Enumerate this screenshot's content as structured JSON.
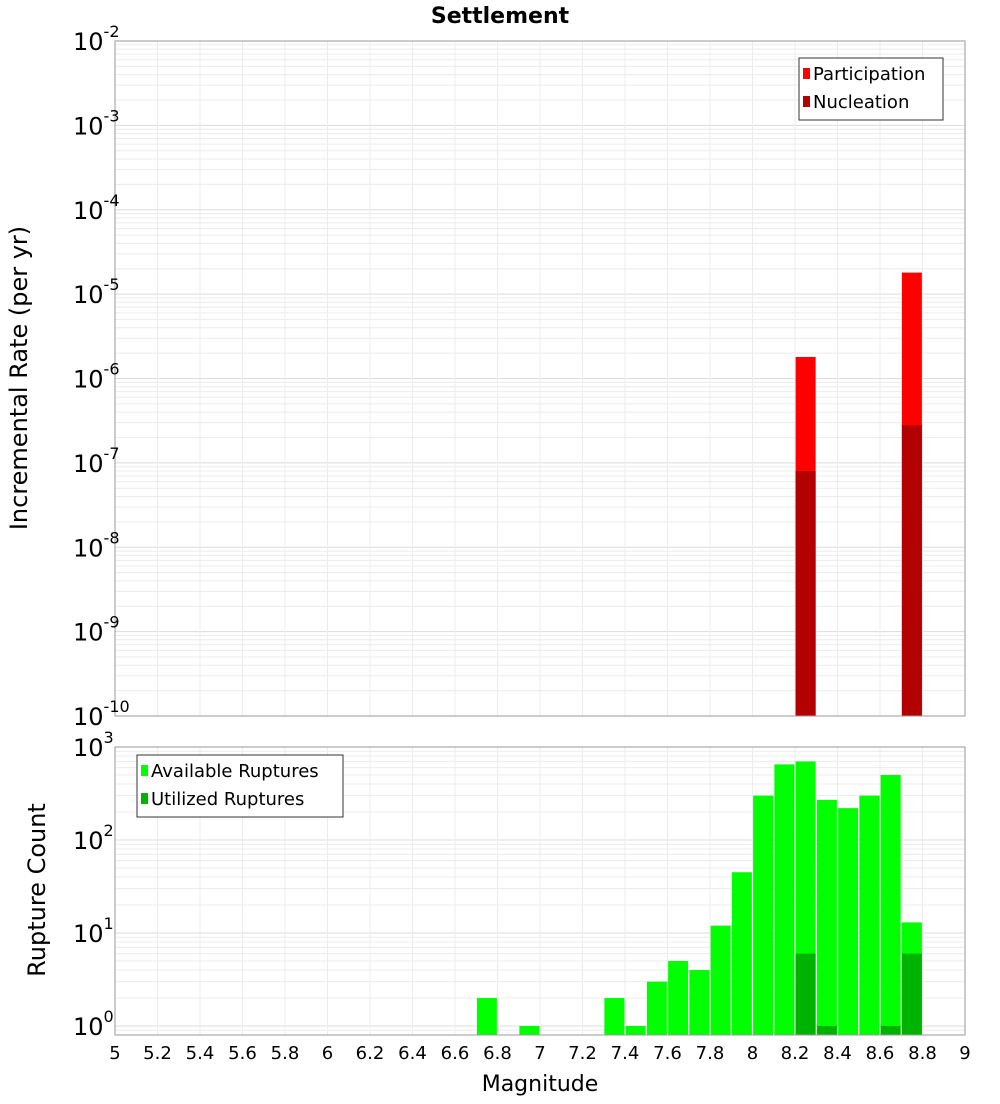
{
  "chart_data": [
    {
      "type": "bar",
      "title": "Settlement",
      "ylabel": "Incremental Rate (per yr)",
      "xlabel": "",
      "yscale": "log",
      "ylim": [
        1e-10,
        0.01
      ],
      "xlim": [
        5,
        9
      ],
      "y_ticks": [
        {
          "base": "10",
          "exp": "-2"
        },
        {
          "base": "10",
          "exp": "-3"
        },
        {
          "base": "10",
          "exp": "-4"
        },
        {
          "base": "10",
          "exp": "-5"
        },
        {
          "base": "10",
          "exp": "-6"
        },
        {
          "base": "10",
          "exp": "-7"
        },
        {
          "base": "10",
          "exp": "-8"
        },
        {
          "base": "10",
          "exp": "-9"
        },
        {
          "base": "10",
          "exp": "-10"
        }
      ],
      "legend_position": "top-right",
      "series": [
        {
          "name": "Participation",
          "color": "#ff0000",
          "x": [
            8.25,
            8.75
          ],
          "values": [
            1.8e-06,
            1.8e-05
          ]
        },
        {
          "name": "Nucleation",
          "color": "#b30000",
          "x": [
            8.25,
            8.75
          ],
          "values": [
            8e-08,
            2.8e-07
          ]
        }
      ]
    },
    {
      "type": "bar",
      "title": "",
      "ylabel": "Rupture Count",
      "xlabel": "Magnitude",
      "yscale": "log",
      "ylim": [
        0.8,
        1000
      ],
      "xlim": [
        5,
        9
      ],
      "x_ticks": [
        "5",
        "5.2",
        "5.4",
        "5.6",
        "5.8",
        "6",
        "6.2",
        "6.4",
        "6.6",
        "6.8",
        "7",
        "7.2",
        "7.4",
        "7.6",
        "7.8",
        "8",
        "8.2",
        "8.4",
        "8.6",
        "8.8",
        "9"
      ],
      "y_ticks": [
        {
          "base": "10",
          "exp": "3"
        },
        {
          "base": "10",
          "exp": "2"
        },
        {
          "base": "10",
          "exp": "1"
        },
        {
          "base": "10",
          "exp": "0"
        }
      ],
      "legend_position": "top-left",
      "series": [
        {
          "name": "Available Ruptures",
          "color": "#00ff00",
          "x": [
            6.75,
            6.95,
            7.35,
            7.45,
            7.55,
            7.65,
            7.75,
            7.85,
            7.95,
            8.05,
            8.15,
            8.25,
            8.35,
            8.45,
            8.55,
            8.65,
            8.75
          ],
          "values": [
            2,
            1,
            2,
            1,
            3,
            5,
            4,
            12,
            45,
            300,
            650,
            700,
            270,
            220,
            300,
            500,
            13
          ]
        },
        {
          "name": "Utilized Ruptures",
          "color": "#00b300",
          "x": [
            8.25,
            8.35,
            8.65,
            8.75
          ],
          "values": [
            6,
            1,
            1,
            6
          ]
        }
      ]
    }
  ]
}
